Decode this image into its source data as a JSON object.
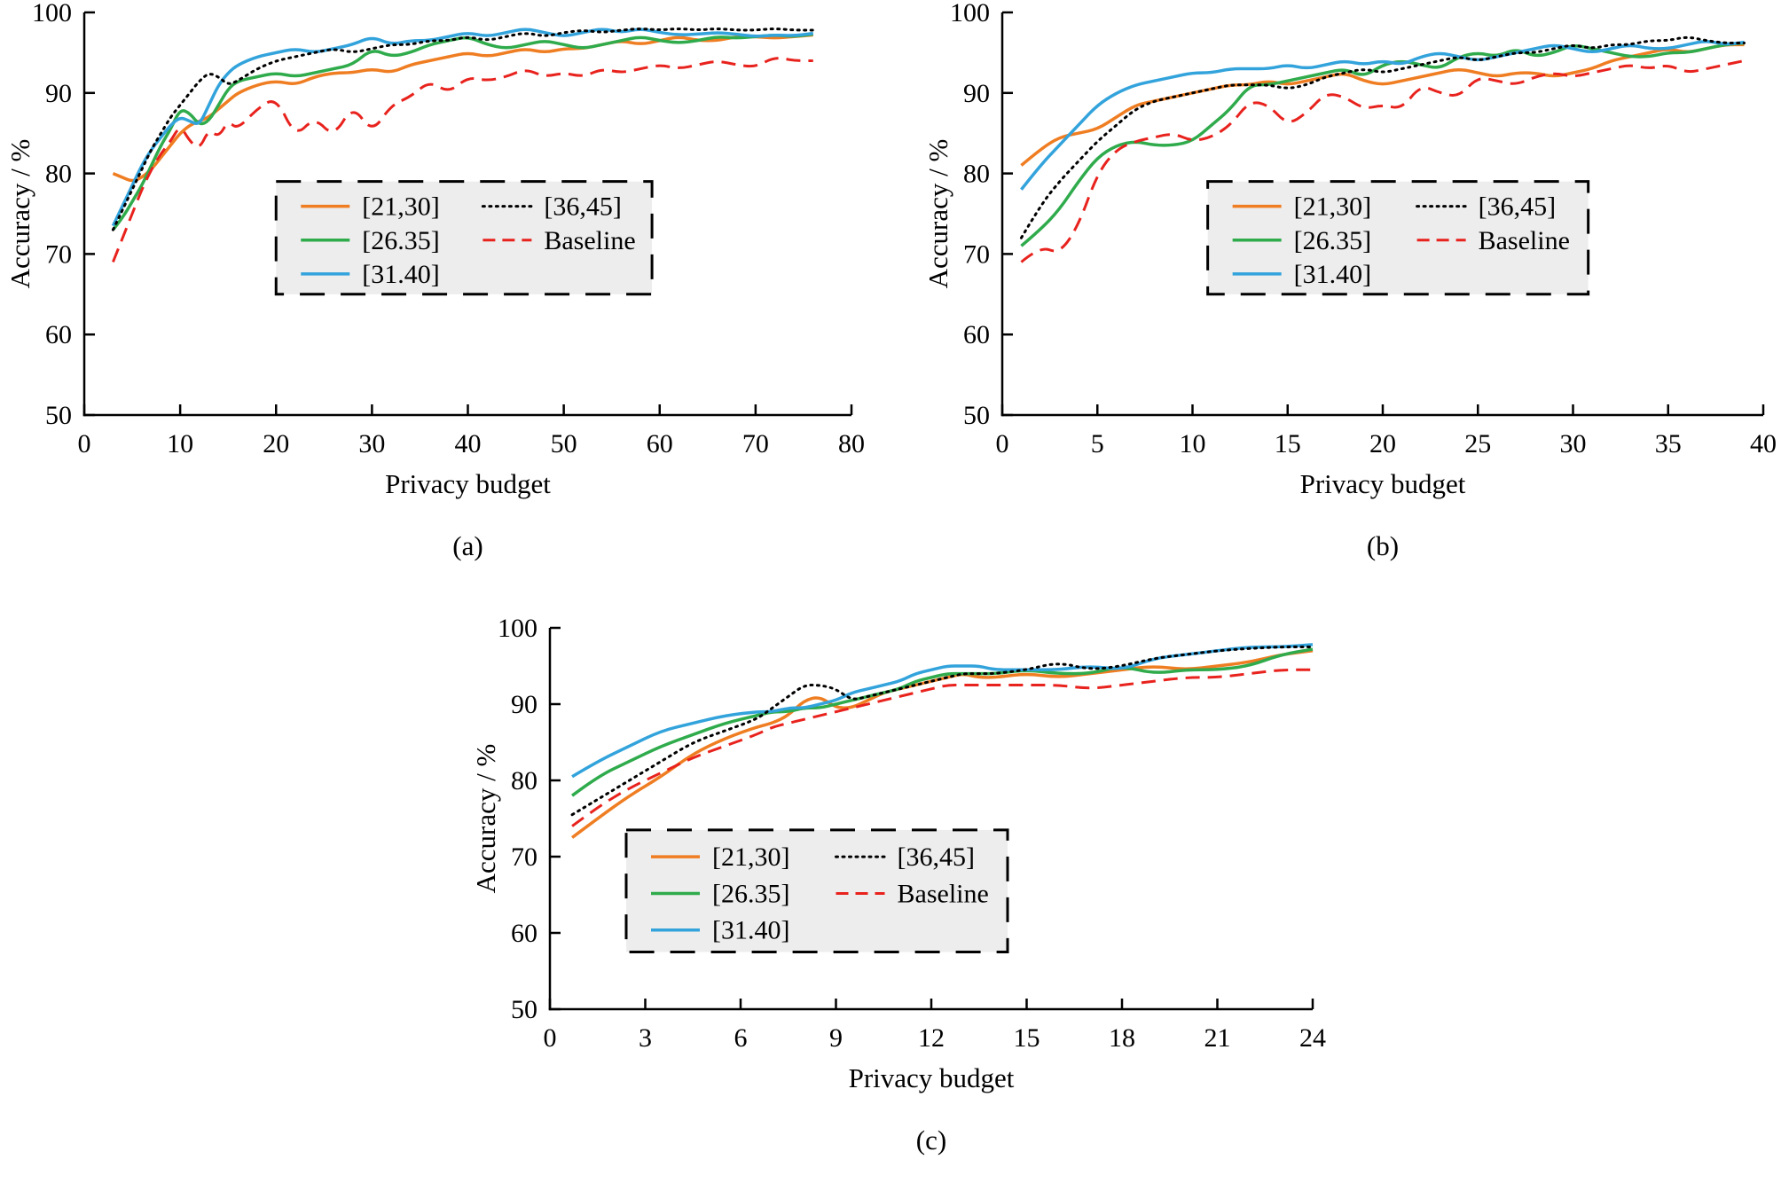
{
  "page": {
    "background": "#ffffff"
  },
  "series_styles": [
    {
      "name": "[21,30]",
      "color": "#ef7d22",
      "dash": "solid"
    },
    {
      "name": "[26.35]",
      "color": "#2fab4c",
      "dash": "solid"
    },
    {
      "name": "[31.40]",
      "color": "#33a3dc",
      "dash": "solid"
    },
    {
      "name": "[36,45]",
      "color": "#000000",
      "dash": "dotted"
    },
    {
      "name": "Baseline",
      "color": "#e8221d",
      "dash": "dashed"
    }
  ],
  "legend": {
    "columns": [
      [
        "[21,30]",
        "[26.35]",
        "[31.40]"
      ],
      [
        "[36,45]",
        "Baseline"
      ]
    ],
    "background": "#ededed",
    "border_color": "#000000"
  },
  "chart_data": [
    {
      "id": "a",
      "type": "line",
      "caption": "(a)",
      "xlabel": "Privacy budget",
      "ylabel": "Accuracy / %",
      "xlim": [
        0,
        80
      ],
      "xticks": [
        0,
        10,
        20,
        30,
        40,
        50,
        60,
        70,
        80
      ],
      "ylim": [
        50,
        100
      ],
      "yticks": [
        50,
        60,
        70,
        80,
        90,
        100
      ],
      "grid": false,
      "legend_pos": {
        "x": 0.25,
        "y": 0.42,
        "w": 0.49,
        "h": 0.28
      },
      "x": [
        3,
        4,
        5,
        6,
        7,
        8,
        9,
        10,
        11,
        12,
        13,
        14,
        15,
        16,
        18,
        20,
        22,
        24,
        26,
        28,
        30,
        32,
        34,
        36,
        38,
        40,
        42,
        44,
        46,
        48,
        50,
        52,
        54,
        56,
        58,
        60,
        62,
        64,
        66,
        68,
        70,
        72,
        74,
        76
      ],
      "series": [
        {
          "name": "[21,30]",
          "y": [
            80,
            79.5,
            79,
            79.5,
            80.5,
            82,
            83.5,
            85,
            86,
            86.5,
            87,
            88,
            89,
            90,
            91,
            91.5,
            91,
            92,
            92.5,
            92.5,
            93,
            92.5,
            93.5,
            94,
            94.5,
            95,
            94.5,
            95,
            95.5,
            95,
            95.5,
            95.5,
            96,
            96.5,
            96,
            96.5,
            97,
            96.5,
            96.5,
            97,
            97,
            96.8,
            97,
            97.2
          ]
        },
        {
          "name": "[26.35]",
          "y": [
            73,
            74.5,
            76.5,
            78.5,
            81,
            83.5,
            85.5,
            88,
            87.5,
            86,
            86.5,
            88.5,
            90.5,
            91.5,
            92,
            92.5,
            92,
            92.5,
            93,
            93.5,
            95.5,
            94.5,
            95,
            96,
            96.5,
            97,
            96,
            95.5,
            96,
            96.5,
            96,
            95.5,
            96,
            96.5,
            97,
            96.5,
            96.2,
            96.5,
            97,
            96.8,
            97,
            97.2,
            97,
            97.3
          ]
        },
        {
          "name": "[31.40]",
          "y": [
            73.5,
            76,
            78.5,
            81,
            83,
            84.5,
            86,
            87,
            86.5,
            86,
            88.5,
            91,
            92.5,
            93.5,
            94.5,
            95,
            95.5,
            95,
            95.5,
            96,
            97,
            96,
            96.5,
            96.5,
            97,
            97.5,
            97,
            97.5,
            98,
            97.5,
            97,
            97.5,
            98,
            97.5,
            98,
            97.5,
            97.2,
            97.3,
            97.5,
            97.3,
            97,
            97.2,
            97.1,
            97.4
          ]
        },
        {
          "name": "[36,45]",
          "y": [
            73,
            75.5,
            78,
            80.5,
            83,
            85,
            87,
            88.5,
            90,
            91.5,
            92.5,
            92,
            91,
            91.5,
            93,
            94,
            94.5,
            95,
            95.5,
            95,
            95.5,
            96,
            96,
            96.5,
            96.5,
            97,
            96.5,
            97,
            97.5,
            97,
            97.5,
            97.8,
            97.5,
            97.8,
            98,
            97.8,
            98,
            97.8,
            98,
            97.8,
            97.8,
            98,
            97.8,
            97.8
          ]
        },
        {
          "name": "Baseline",
          "y": [
            69,
            72,
            75,
            78,
            80.5,
            82.5,
            84,
            86,
            84,
            83,
            85.5,
            84.5,
            86.5,
            85.5,
            88,
            89.5,
            84.5,
            87,
            84.5,
            88.5,
            85,
            88.5,
            89.5,
            91.5,
            90,
            92,
            91.5,
            92,
            93,
            92,
            92.5,
            92,
            93,
            92.5,
            93,
            93.5,
            93,
            93.5,
            94,
            93.5,
            93.2,
            94.5,
            94,
            94
          ]
        }
      ]
    },
    {
      "id": "b",
      "type": "line",
      "caption": "(b)",
      "xlabel": "Privacy budget",
      "ylabel": "Accuracy / %",
      "xlim": [
        0,
        40
      ],
      "xticks": [
        0,
        5,
        10,
        15,
        20,
        25,
        30,
        35,
        40
      ],
      "ylim": [
        50,
        100
      ],
      "yticks": [
        50,
        60,
        70,
        80,
        90,
        100
      ],
      "grid": false,
      "legend_pos": {
        "x": 0.27,
        "y": 0.42,
        "w": 0.5,
        "h": 0.28
      },
      "x": [
        1,
        2,
        3,
        4,
        5,
        6,
        7,
        8,
        9,
        10,
        11,
        12,
        13,
        14,
        15,
        16,
        17,
        18,
        19,
        20,
        21,
        22,
        23,
        24,
        25,
        26,
        27,
        28,
        29,
        30,
        31,
        32,
        33,
        34,
        35,
        36,
        37,
        38,
        39
      ],
      "series": [
        {
          "name": "[21,30]",
          "y": [
            81,
            83,
            84.5,
            85,
            85.5,
            87,
            88.5,
            89,
            89.5,
            90,
            90.5,
            91,
            91,
            91.5,
            91,
            91.5,
            92,
            92.5,
            91.5,
            91,
            91.5,
            92,
            92.5,
            93,
            92.5,
            92,
            92.5,
            92.5,
            92,
            92.5,
            93,
            94,
            94.5,
            95,
            95.5,
            95,
            95.5,
            96,
            96
          ]
        },
        {
          "name": "[26.35]",
          "y": [
            71,
            73,
            75.5,
            79,
            82,
            83.5,
            84,
            83.5,
            83.5,
            84,
            86,
            88,
            91,
            91,
            91.5,
            92,
            92.5,
            93,
            92,
            93.5,
            94,
            93.5,
            93,
            94.5,
            95,
            94.5,
            95.5,
            94.5,
            95,
            96,
            95.5,
            95,
            94.5,
            94.5,
            95,
            95,
            95.5,
            96,
            96.2
          ]
        },
        {
          "name": "[31.40]",
          "y": [
            78,
            81,
            83.5,
            86,
            88.5,
            90,
            91,
            91.5,
            92,
            92.5,
            92.5,
            93,
            93,
            93,
            93.5,
            93,
            93.5,
            94,
            93.5,
            94,
            93.5,
            94.5,
            95,
            94.5,
            94,
            94.5,
            95,
            95.5,
            96,
            95.5,
            95,
            95.5,
            96,
            95.5,
            95.5,
            96,
            96.5,
            96,
            96.3
          ]
        },
        {
          "name": "[36,45]",
          "y": [
            72,
            76,
            79,
            81.5,
            84,
            86,
            88,
            89,
            89.5,
            90,
            90.5,
            91,
            91,
            91,
            90.5,
            91,
            92,
            92.5,
            93,
            92.5,
            93,
            93.5,
            94,
            94.5,
            94,
            94.5,
            95,
            95,
            95.5,
            96,
            95.5,
            96,
            96,
            96.5,
            96.5,
            97,
            96.5,
            96.2,
            96.2
          ]
        },
        {
          "name": "Baseline",
          "y": [
            69,
            71,
            70,
            73.5,
            80,
            83,
            84,
            84.5,
            85,
            84,
            84.5,
            86,
            89,
            88.5,
            86,
            87.5,
            90,
            89.5,
            88,
            88.5,
            88,
            91,
            90,
            89.5,
            92,
            91.5,
            91,
            92,
            92.5,
            92,
            92.5,
            93,
            93.5,
            93,
            93.5,
            92.5,
            93,
            93.5,
            94
          ]
        }
      ]
    },
    {
      "id": "c",
      "type": "line",
      "caption": "(c)",
      "xlabel": "Privacy budget",
      "ylabel": "Accuracy / %",
      "xlim": [
        0,
        24
      ],
      "xticks": [
        0,
        3,
        6,
        9,
        12,
        15,
        18,
        21,
        24
      ],
      "ylim": [
        50,
        100
      ],
      "yticks": [
        50,
        60,
        70,
        80,
        90,
        100
      ],
      "grid": false,
      "legend_pos": {
        "x": 0.1,
        "y": 0.53,
        "w": 0.5,
        "h": 0.32
      },
      "x": [
        0.7,
        1.5,
        2.5,
        3.5,
        4.5,
        5.5,
        6.5,
        7,
        7.5,
        8,
        8.5,
        9,
        9.5,
        10,
        10.5,
        11,
        11.5,
        12,
        12.5,
        13,
        13.5,
        14,
        15,
        16,
        17,
        18,
        19,
        20,
        21,
        22,
        23,
        24
      ],
      "series": [
        {
          "name": "[21,30]",
          "y": [
            72.5,
            75,
            78,
            80.5,
            83.5,
            85.5,
            87,
            87.5,
            88.5,
            90.5,
            91,
            89.5,
            89.5,
            90.5,
            91.5,
            92,
            92.5,
            93,
            93.5,
            94,
            93.5,
            93.5,
            94,
            93.5,
            94,
            94.5,
            95,
            94.5,
            95,
            95.5,
            96.5,
            97
          ]
        },
        {
          "name": "[26.35]",
          "y": [
            78,
            80.5,
            82.5,
            84.5,
            86,
            87.5,
            88.5,
            89,
            89,
            89.5,
            89.5,
            90,
            90.5,
            91,
            91.5,
            92,
            93,
            93.5,
            94,
            94,
            94,
            94,
            94.5,
            94,
            94,
            95,
            94,
            94.5,
            94.5,
            95,
            96.5,
            97.2
          ]
        },
        {
          "name": "[31.40]",
          "y": [
            80.5,
            82.5,
            84.5,
            86.5,
            87.5,
            88.5,
            89,
            89,
            89.5,
            89.5,
            90,
            90.5,
            91.5,
            92,
            92.5,
            93,
            94,
            94.5,
            95,
            95,
            95,
            94.5,
            94.5,
            94.5,
            95,
            94.5,
            96,
            96.5,
            97,
            97.5,
            97.5,
            97.8
          ]
        },
        {
          "name": "[36,45]",
          "y": [
            75.5,
            77.5,
            80,
            82.5,
            85,
            86.5,
            88,
            89.5,
            91,
            92.5,
            92.5,
            92,
            90.5,
            91,
            91.5,
            92,
            92.5,
            93,
            93.5,
            94,
            94,
            94,
            94.5,
            95.5,
            94.5,
            95,
            96,
            96.5,
            97,
            97.3,
            97.5,
            97.5
          ]
        },
        {
          "name": "Baseline",
          "y": [
            74,
            76.5,
            79,
            81,
            83,
            84.5,
            86,
            87,
            87.5,
            88,
            88.5,
            89,
            89.5,
            90,
            90.5,
            91,
            91.5,
            92,
            92.5,
            92.5,
            92.5,
            92.5,
            92.5,
            92.5,
            92,
            92.5,
            93,
            93.5,
            93.5,
            94,
            94.5,
            94.5
          ]
        }
      ]
    }
  ]
}
